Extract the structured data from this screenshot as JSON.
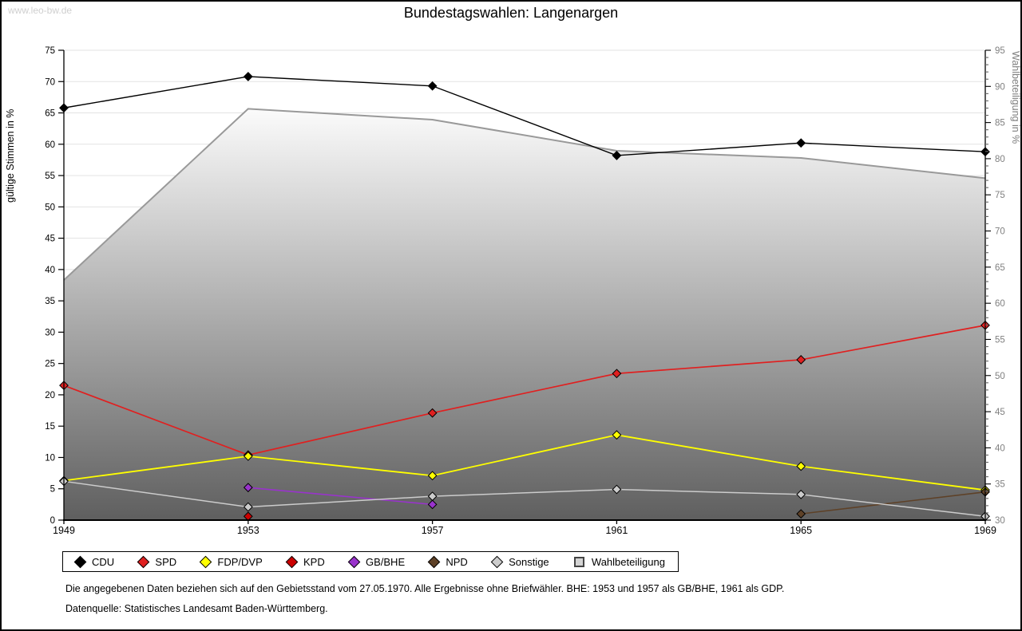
{
  "watermark": "www.leo-bw.de",
  "title": "Bundestagswahlen: Langenargen",
  "footer": {
    "note": "Die angegebenen Daten beziehen sich auf den Gebietsstand vom 27.05.1970. Alle Ergebnisse ohne Briefwähler. BHE: 1953 und 1957 als GB/BHE, 1961 als GDP.",
    "source": "Datenquelle: Statistisches Landesamt Baden-Württemberg."
  },
  "chart_data": {
    "type": "line",
    "title": "Bundestagswahlen: Langenargen",
    "x": [
      1949,
      1953,
      1957,
      1961,
      1965,
      1969
    ],
    "left_axis": {
      "label": "gültige Stimmen in %",
      "min": 0,
      "max": 75,
      "tick_step": 5
    },
    "right_axis": {
      "label": "Wahlbeteiligung in %",
      "min": 30,
      "max": 95,
      "tick_step": 5,
      "minor_tick_step": 1
    },
    "grid": true,
    "legend_position": "bottom",
    "series": [
      {
        "name": "CDU",
        "color": "#000000",
        "axis": "left",
        "kind": "line",
        "marker": "diamond",
        "line_width": 1.4,
        "values": [
          65.8,
          70.8,
          69.3,
          58.2,
          60.2,
          58.8
        ]
      },
      {
        "name": "SPD",
        "color": "#e02020",
        "axis": "left",
        "kind": "line",
        "marker": "diamond",
        "line_width": 1.7,
        "values": [
          21.5,
          10.4,
          17.1,
          23.4,
          25.6,
          31.1
        ]
      },
      {
        "name": "FDP/DVP",
        "color": "#ffff00",
        "axis": "left",
        "kind": "line",
        "marker": "diamond",
        "line_width": 1.8,
        "values": [
          6.3,
          10.2,
          7.1,
          13.6,
          8.6,
          4.8
        ]
      },
      {
        "name": "KPD",
        "color": "#cc0000",
        "axis": "left",
        "kind": "line",
        "marker": "diamond",
        "line_width": 1.5,
        "values": [
          null,
          0.6,
          null,
          null,
          null,
          null
        ]
      },
      {
        "name": "GB/BHE",
        "color": "#9933cc",
        "axis": "left",
        "kind": "line",
        "marker": "diamond",
        "line_width": 1.6,
        "values": [
          null,
          5.2,
          2.5,
          null,
          null,
          null
        ]
      },
      {
        "name": "NPD",
        "color": "#5e4127",
        "axis": "left",
        "kind": "line",
        "marker": "diamond",
        "line_width": 1.6,
        "values": [
          null,
          null,
          null,
          null,
          1.0,
          4.5
        ]
      },
      {
        "name": "Sonstige",
        "color": "#cccccc",
        "axis": "left",
        "kind": "line",
        "marker": "diamond",
        "line_width": 1.5,
        "values": [
          6.2,
          2.1,
          3.8,
          4.9,
          4.1,
          0.6
        ]
      },
      {
        "name": "Wahlbeteiligung",
        "color": "#999999",
        "axis": "right",
        "kind": "area",
        "marker": "square",
        "line_width": 2,
        "values": [
          63.2,
          86.9,
          85.4,
          81.1,
          80.1,
          77.3
        ],
        "area_gradient_top": "#fbfbfb",
        "area_gradient_bottom": "#5f5f5f"
      }
    ],
    "plot_colors": {
      "gridline": "#e3e3e3",
      "axis": "#000000",
      "right_axis_text": "#808080",
      "left_axis_text": "#000000"
    }
  }
}
